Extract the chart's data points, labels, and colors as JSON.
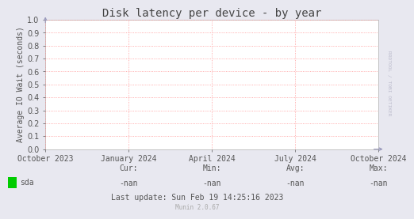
{
  "title": "Disk latency per device - by year",
  "ylabel": "Average IO Wait (seconds)",
  "background_color": "#e8e8f0",
  "plot_bg_color": "#ffffff",
  "grid_color": "#ff8888",
  "border_color": "#aaaaaa",
  "ylim": [
    0.0,
    1.0
  ],
  "yticks": [
    0.0,
    0.1,
    0.2,
    0.3,
    0.4,
    0.5,
    0.6,
    0.7,
    0.8,
    0.9,
    1.0
  ],
  "xtick_labels": [
    "October 2023",
    "January 2024",
    "April 2024",
    "July 2024",
    "October 2024"
  ],
  "xtick_positions": [
    0,
    0.25,
    0.5,
    0.75,
    1.0
  ],
  "title_fontsize": 10,
  "axis_fontsize": 7,
  "tick_fontsize": 7,
  "legend_color": "#00cc00",
  "legend_label": "sda",
  "cur_label": "Cur:",
  "cur_value": "-nan",
  "min_label": "Min:",
  "min_value": "-nan",
  "avg_label": "Avg:",
  "avg_value": "-nan",
  "max_label": "Max:",
  "max_value": "-nan",
  "last_update": "Last update: Sun Feb 19 14:25:16 2023",
  "munin_label": "Munin 2.0.67",
  "watermark": "RRDTOOL / TOBI OETIKER",
  "arrow_color": "#9999bb",
  "watermark_color": "#bbbbcc"
}
